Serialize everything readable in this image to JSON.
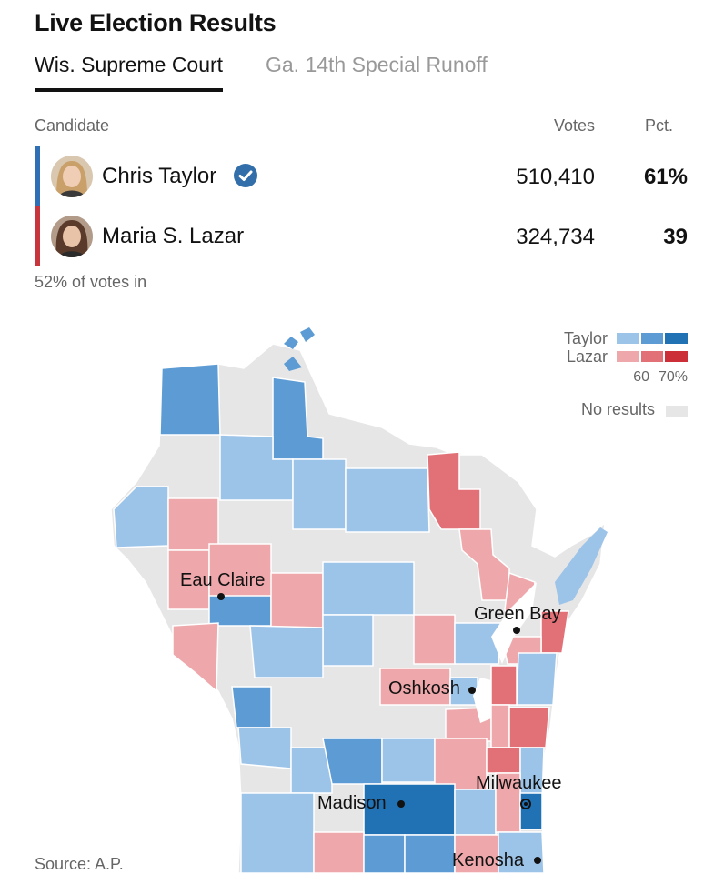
{
  "header": {
    "title": "Live Election Results"
  },
  "tabs": [
    {
      "label": "Wis. Supreme Court",
      "active": true
    },
    {
      "label": "Ga. 14th Special Runoff",
      "active": false
    }
  ],
  "table": {
    "columns": {
      "candidate": "Candidate",
      "votes": "Votes",
      "pct": "Pct."
    },
    "rows": [
      {
        "name": "Chris Taylor",
        "votes": "510,410",
        "pct": "61%",
        "color": "#2e6fb5",
        "winner": true
      },
      {
        "name": "Maria S. Lazar",
        "votes": "324,734",
        "pct": "39",
        "color": "#c8353c",
        "winner": false
      }
    ]
  },
  "reporting": "52% of votes in",
  "legend": {
    "taylor_label": "Taylor",
    "lazar_label": "Lazar",
    "scale_low": "60",
    "scale_high": "70%",
    "no_results_label": "No results",
    "taylor_colors": [
      "#9cc3e8",
      "#5c9bd4",
      "#2171b5"
    ],
    "lazar_colors": [
      "#eea7aa",
      "#e17177",
      "#cc2f38"
    ],
    "no_results_color": "#e6e6e6"
  },
  "map": {
    "cities": [
      "Eau Claire",
      "Green Bay",
      "Oshkosh",
      "Madison",
      "Milwaukee",
      "Kenosha"
    ]
  },
  "source": "Source: A.P."
}
